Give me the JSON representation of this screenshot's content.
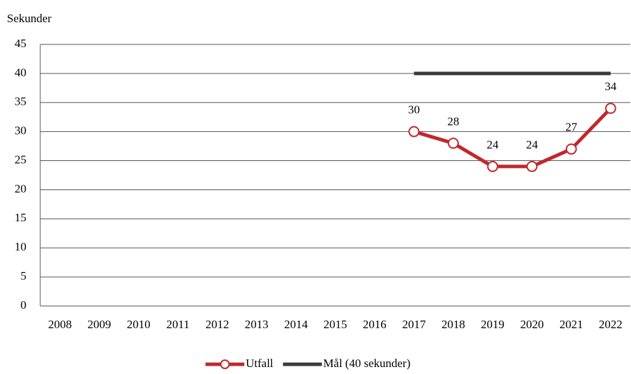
{
  "chart_data": {
    "type": "line",
    "y_axis_label": "Sekunder",
    "categories": [
      "2008",
      "2009",
      "2010",
      "2011",
      "2012",
      "2013",
      "2014",
      "2015",
      "2016",
      "2017",
      "2018",
      "2019",
      "2020",
      "2021",
      "2022"
    ],
    "series": [
      {
        "name": "Utfall",
        "color": "#c0282d",
        "markers": true,
        "data_labels": true,
        "values": [
          null,
          null,
          null,
          null,
          null,
          null,
          null,
          null,
          null,
          30,
          28,
          24,
          24,
          27,
          34
        ]
      },
      {
        "name": "Mål (40 sekunder)",
        "color": "#3a3a3a",
        "markers": false,
        "data_labels": false,
        "values": [
          null,
          null,
          null,
          null,
          null,
          null,
          null,
          null,
          null,
          40,
          40,
          40,
          40,
          40,
          40
        ]
      }
    ],
    "ylim": [
      0,
      45
    ],
    "yticks": [
      0,
      5,
      10,
      15,
      20,
      25,
      30,
      35,
      40,
      45
    ],
    "grid": true,
    "legend": "bottom"
  }
}
